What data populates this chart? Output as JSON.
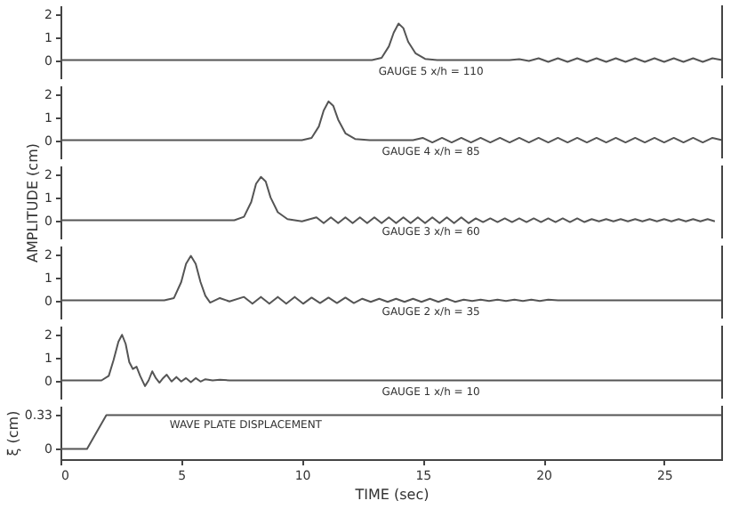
{
  "chart_data": [
    {
      "type": "line",
      "annotations": [
        "GAUGE 5   x/h = 110"
      ],
      "xlim": [
        0,
        27.4
      ],
      "ylim": [
        -0.8,
        2.4
      ],
      "yticks": [
        0,
        1,
        2
      ],
      "tick_labels": "y",
      "grid": false,
      "marker": "none",
      "line_style": "solid",
      "color": "#555555",
      "x": [
        0,
        12.9,
        13.3,
        13.6,
        13.8,
        14.0,
        14.2,
        14.4,
        14.7,
        15.1,
        15.6,
        18.6,
        19.0,
        19.4,
        19.8,
        20.2,
        20.6,
        21.0,
        21.4,
        21.8,
        22.2,
        22.6,
        23.0,
        23.4,
        23.8,
        24.2,
        24.6,
        25.0,
        25.4,
        25.8,
        26.2,
        26.6,
        27.0,
        27.4
      ],
      "values": [
        0,
        0,
        0.1,
        0.6,
        1.2,
        1.6,
        1.4,
        0.8,
        0.3,
        0.05,
        0,
        0,
        0.04,
        -0.04,
        0.08,
        -0.08,
        0.08,
        -0.08,
        0.08,
        -0.08,
        0.08,
        -0.08,
        0.08,
        -0.08,
        0.08,
        -0.08,
        0.08,
        -0.08,
        0.08,
        -0.08,
        0.08,
        -0.08,
        0.08,
        0
      ]
    },
    {
      "type": "line",
      "annotations": [
        "GAUGE 4   x/h = 85"
      ],
      "xlim": [
        0,
        27.4
      ],
      "ylim": [
        -0.8,
        2.4
      ],
      "yticks": [
        0,
        1,
        2
      ],
      "tick_labels": "y",
      "grid": false,
      "marker": "none",
      "line_style": "solid",
      "color": "#555555",
      "x": [
        0,
        10.0,
        10.4,
        10.7,
        10.9,
        11.1,
        11.3,
        11.5,
        11.8,
        12.2,
        12.8,
        14.6,
        15.0,
        15.4,
        15.8,
        16.2,
        16.6,
        17.0,
        17.4,
        17.8,
        18.2,
        18.6,
        19.0,
        19.4,
        19.8,
        20.2,
        20.6,
        21.0,
        21.4,
        21.8,
        22.2,
        22.6,
        23.0,
        23.4,
        23.8,
        24.2,
        24.6,
        25.0,
        25.4,
        25.8,
        26.2,
        26.6,
        27.0,
        27.4
      ],
      "values": [
        0,
        0,
        0.1,
        0.6,
        1.3,
        1.7,
        1.5,
        0.9,
        0.3,
        0.05,
        0,
        0,
        0.1,
        -0.1,
        0.1,
        -0.1,
        0.1,
        -0.1,
        0.1,
        -0.1,
        0.1,
        -0.1,
        0.1,
        -0.1,
        0.1,
        -0.1,
        0.1,
        -0.1,
        0.1,
        -0.1,
        0.1,
        -0.1,
        0.1,
        -0.1,
        0.1,
        -0.1,
        0.1,
        -0.1,
        0.1,
        -0.1,
        0.1,
        -0.1,
        0.1,
        0
      ]
    },
    {
      "type": "line",
      "annotations": [
        "GAUGE 3   x/h = 60"
      ],
      "ylabel": "AMPLITUDE (cm)",
      "xlim": [
        0,
        27.4
      ],
      "ylim": [
        -0.8,
        2.4
      ],
      "yticks": [
        0,
        1,
        2
      ],
      "tick_labels": "y",
      "grid": false,
      "marker": "none",
      "line_style": "solid",
      "color": "#555555",
      "x": [
        0,
        7.2,
        7.6,
        7.9,
        8.1,
        8.3,
        8.5,
        8.7,
        9.0,
        9.4,
        10.0,
        10.6,
        10.9,
        11.2,
        11.5,
        11.8,
        12.1,
        12.4,
        12.7,
        13.0,
        13.3,
        13.6,
        13.9,
        14.2,
        14.5,
        14.8,
        15.1,
        15.4,
        15.7,
        16.0,
        16.3,
        16.6,
        16.9,
        17.2,
        17.5,
        17.8,
        18.1,
        18.4,
        18.7,
        19.0,
        19.3,
        19.6,
        19.9,
        20.2,
        20.5,
        20.8,
        21.1,
        21.4,
        21.7,
        22.0,
        22.3,
        22.6,
        22.9,
        23.2,
        23.5,
        23.8,
        24.1,
        24.4,
        24.7,
        25.0,
        25.3,
        25.6,
        25.9,
        26.2,
        26.5,
        26.8,
        27.1
      ],
      "values": [
        0,
        0,
        0.15,
        0.8,
        1.6,
        1.9,
        1.7,
        1.0,
        0.35,
        0.05,
        -0.05,
        0.13,
        -0.13,
        0.13,
        -0.13,
        0.13,
        -0.13,
        0.13,
        -0.13,
        0.13,
        -0.13,
        0.13,
        -0.13,
        0.13,
        -0.13,
        0.13,
        -0.13,
        0.13,
        -0.13,
        0.13,
        -0.13,
        0.13,
        -0.13,
        0.08,
        -0.08,
        0.08,
        -0.08,
        0.08,
        -0.08,
        0.08,
        -0.08,
        0.08,
        -0.08,
        0.08,
        -0.08,
        0.08,
        -0.08,
        0.08,
        -0.08,
        0.05,
        -0.05,
        0.05,
        -0.05,
        0.05,
        -0.05,
        0.05,
        -0.05,
        0.05,
        -0.05,
        0.05,
        -0.05,
        0.05,
        -0.05,
        0.05,
        -0.05,
        0.05,
        -0.05
      ]
    },
    {
      "type": "line",
      "annotations": [
        "GAUGE 2   x/h = 35"
      ],
      "xlim": [
        0,
        27.4
      ],
      "ylim": [
        -0.8,
        2.4
      ],
      "yticks": [
        0,
        1,
        2
      ],
      "tick_labels": "y",
      "grid": false,
      "marker": "none",
      "line_style": "solid",
      "color": "#555555",
      "x": [
        0,
        4.3,
        4.7,
        5.0,
        5.2,
        5.4,
        5.6,
        5.8,
        6.0,
        6.2,
        6.6,
        7.0,
        7.6,
        7.95,
        8.3,
        8.65,
        9.0,
        9.35,
        9.7,
        10.05,
        10.4,
        10.75,
        11.1,
        11.45,
        11.8,
        12.15,
        12.5,
        12.85,
        13.2,
        13.55,
        13.9,
        14.25,
        14.6,
        14.95,
        15.3,
        15.65,
        16.0,
        16.35,
        16.7,
        17.05,
        17.4,
        17.75,
        18.1,
        18.45,
        18.8,
        19.15,
        19.5,
        19.85,
        20.2,
        20.6,
        27.4
      ],
      "values": [
        0,
        0,
        0.1,
        0.8,
        1.6,
        1.95,
        1.6,
        0.8,
        0.2,
        -0.1,
        0.1,
        -0.05,
        0.15,
        -0.15,
        0.15,
        -0.15,
        0.15,
        -0.15,
        0.15,
        -0.15,
        0.12,
        -0.12,
        0.12,
        -0.12,
        0.12,
        -0.12,
        0.07,
        -0.07,
        0.07,
        -0.07,
        0.07,
        -0.07,
        0.07,
        -0.07,
        0.07,
        -0.07,
        0.07,
        -0.07,
        0.03,
        -0.03,
        0.03,
        -0.03,
        0.03,
        -0.03,
        0.03,
        -0.03,
        0.03,
        -0.03,
        0.03,
        0,
        0
      ]
    },
    {
      "type": "line",
      "annotations": [
        "GAUGE 1   x/h = 10"
      ],
      "xlim": [
        0,
        27.4
      ],
      "ylim": [
        -0.8,
        2.4
      ],
      "yticks": [
        0,
        1,
        2
      ],
      "tick_labels": "y",
      "grid": false,
      "marker": "none",
      "line_style": "solid",
      "color": "#555555",
      "x": [
        0,
        1.7,
        2.0,
        2.2,
        2.4,
        2.55,
        2.7,
        2.85,
        3.0,
        3.15,
        3.3,
        3.5,
        3.65,
        3.8,
        3.95,
        4.1,
        4.25,
        4.4,
        4.6,
        4.8,
        5.0,
        5.2,
        5.4,
        5.6,
        5.8,
        6.0,
        6.3,
        6.6,
        7.0,
        27.4
      ],
      "values": [
        0,
        0,
        0.2,
        0.9,
        1.7,
        2.0,
        1.6,
        0.8,
        0.5,
        0.6,
        0.2,
        -0.25,
        0,
        0.4,
        0.1,
        -0.1,
        0.1,
        0.25,
        -0.05,
        0.15,
        -0.05,
        0.1,
        -0.08,
        0.1,
        -0.05,
        0.05,
        0,
        0.03,
        0,
        0
      ]
    },
    {
      "type": "line",
      "annotations": [
        "WAVE PLATE DISPLACEMENT"
      ],
      "ylabel": "ξ (cm)",
      "xlabel": "TIME (sec)",
      "xlim": [
        0,
        27.4
      ],
      "ylim": [
        -0.1,
        0.42
      ],
      "yticks": [
        0,
        0.33
      ],
      "xticks": [
        0,
        5,
        10,
        15,
        20,
        25
      ],
      "grid": false,
      "marker": "none",
      "line_style": "solid",
      "color": "#555555",
      "x": [
        0,
        1.1,
        1.9,
        27.4
      ],
      "values": [
        0,
        0,
        0.33,
        0.33
      ]
    }
  ]
}
